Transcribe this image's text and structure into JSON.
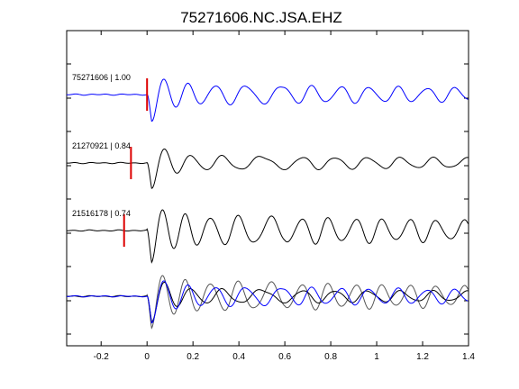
{
  "chart_data": {
    "type": "line",
    "title": "75271606.NC.JSA.EHZ",
    "xlabel": "",
    "ylabel": "",
    "xlim": [
      -0.35,
      1.4
    ],
    "xticks": [
      -0.2,
      0,
      0.2,
      0.4,
      0.6,
      0.8,
      1,
      1.2,
      1.4
    ],
    "xtick_labels": [
      "-0.2",
      "0",
      "0.2",
      "0.4",
      "0.6",
      "0.8",
      "1",
      "1.2",
      "1.4"
    ],
    "grid": false,
    "colors": {
      "primary": "#0000ff",
      "secondary": "#000000",
      "overlay_secondary": "#555555",
      "pick": "#dd0000"
    },
    "series": [
      {
        "label": "75271606 | 1.00",
        "color": "#0000ff",
        "pick_time": 0.0,
        "waveform": {
          "onset": 0.0,
          "f0": 10.5,
          "f1": 8.0,
          "amp": 1.0,
          "decay": 0.045,
          "coda": 0.3,
          "phase": 0.0
        }
      },
      {
        "label": "21270921 | 0.84",
        "color": "#000000",
        "pick_time": -0.07,
        "waveform": {
          "onset": 0.0,
          "f0": 10.0,
          "f1": 7.0,
          "amp": 1.0,
          "decay": 0.05,
          "coda": 0.22,
          "phase": 0.4
        }
      },
      {
        "label": "21516178 | 0.74",
        "color": "#000000",
        "pick_time": -0.1,
        "waveform": {
          "onset": 0.0,
          "f0": 11.0,
          "f1": 8.5,
          "amp": 1.0,
          "decay": 0.04,
          "coda": 0.45,
          "phase": 0.9
        }
      }
    ],
    "overlay": {
      "description_series": [
        "75271606 | 1.00",
        "21270921 | 0.84",
        "21516178 | 0.74"
      ]
    }
  }
}
